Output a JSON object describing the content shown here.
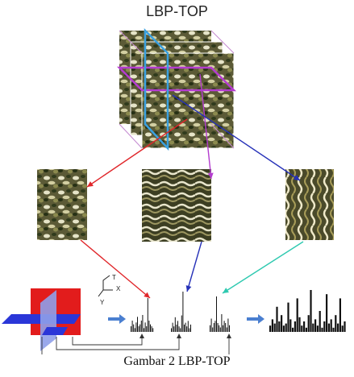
{
  "diagram": {
    "title": "LBP-TOP",
    "caption": "Gambar 2 LBP-TOP",
    "axis_labels": {
      "t": "T",
      "x": "X",
      "y": "Y"
    }
  },
  "histograms": {
    "xy": [
      3,
      6,
      4,
      2,
      5,
      8,
      3,
      4,
      6,
      9,
      2,
      5,
      3,
      18,
      6,
      4,
      3,
      2
    ],
    "xt": [
      2,
      5,
      3,
      8,
      4,
      6,
      3,
      2,
      9,
      22,
      4,
      5,
      3,
      6,
      2,
      4
    ],
    "yt": [
      3,
      6,
      2,
      4,
      5,
      16,
      4,
      3,
      2,
      8,
      3,
      5,
      4,
      2,
      6,
      3
    ],
    "concat": [
      3,
      6,
      4,
      12,
      5,
      8,
      3,
      4,
      14,
      6,
      2,
      5,
      16,
      7,
      3,
      5,
      2,
      8,
      20,
      4,
      6,
      3,
      10,
      2,
      5,
      18,
      4,
      6,
      2,
      8,
      4,
      16,
      3,
      5
    ]
  },
  "colors": {
    "red_arrow": "#e0262a",
    "blue_arrow": "#2631b8",
    "teal_arrow": "#2ec9b0",
    "magenta": "#b43ccf",
    "cyan": "#3aa0e0",
    "flow_arrow": "#4a7fd0",
    "plane_red": "#e21c1c",
    "plane_blue": "#2a36d8",
    "plane_violet": "#8fa0ea"
  }
}
